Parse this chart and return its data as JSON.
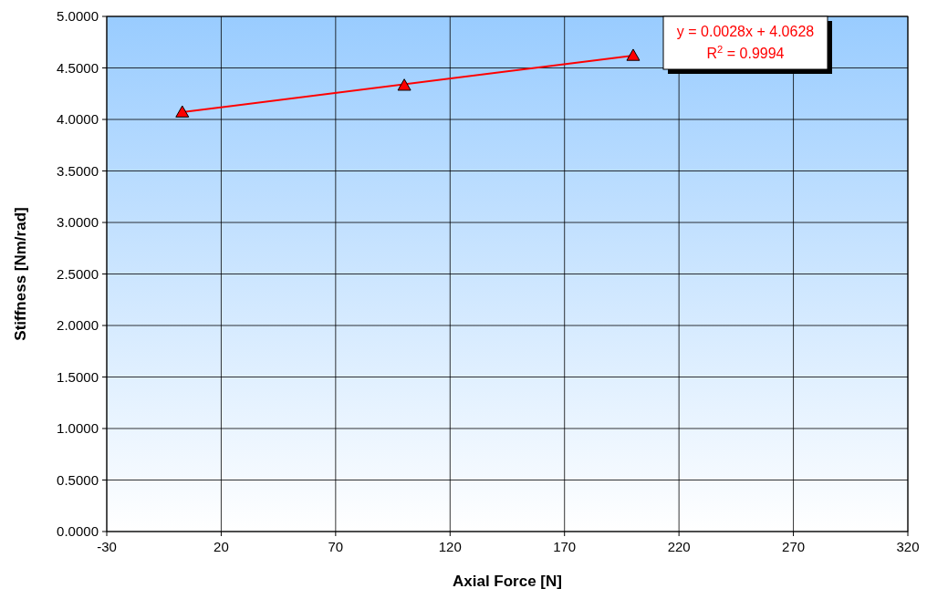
{
  "chart_data": {
    "type": "scatter",
    "xlabel": "Axial Force [N]",
    "ylabel": "Stiffness [Nm/rad]",
    "xlim": [
      -30,
      320
    ],
    "xticks": [
      -30,
      20,
      70,
      120,
      170,
      220,
      270,
      320
    ],
    "ylim": [
      0,
      5
    ],
    "yticks": [
      {
        "value": 0,
        "label": "0.0000"
      },
      {
        "value": 0.5,
        "label": "0.5000"
      },
      {
        "value": 1,
        "label": "1.0000"
      },
      {
        "value": 1.5,
        "label": "1.5000"
      },
      {
        "value": 2,
        "label": "2.0000"
      },
      {
        "value": 2.5,
        "label": "2.5000"
      },
      {
        "value": 3,
        "label": "3.0000"
      },
      {
        "value": 3.5,
        "label": "3.5000"
      },
      {
        "value": 4,
        "label": "4.0000"
      },
      {
        "value": 4.5,
        "label": "4.5000"
      },
      {
        "value": 5,
        "label": "5.0000"
      }
    ],
    "grid": true,
    "series": [
      {
        "type": "line",
        "color": "#ff0000",
        "x": [
          3,
          200
        ],
        "values": [
          4.07,
          4.62
        ]
      },
      {
        "marker": "triangle",
        "color": "#ff0000",
        "x": [
          3,
          100,
          200
        ],
        "values": [
          4.07,
          4.33,
          4.62
        ]
      }
    ],
    "annotations": [
      "y = 0.0028x + 4.0628",
      "R$^{2}$ = 0.9994"
    ]
  }
}
